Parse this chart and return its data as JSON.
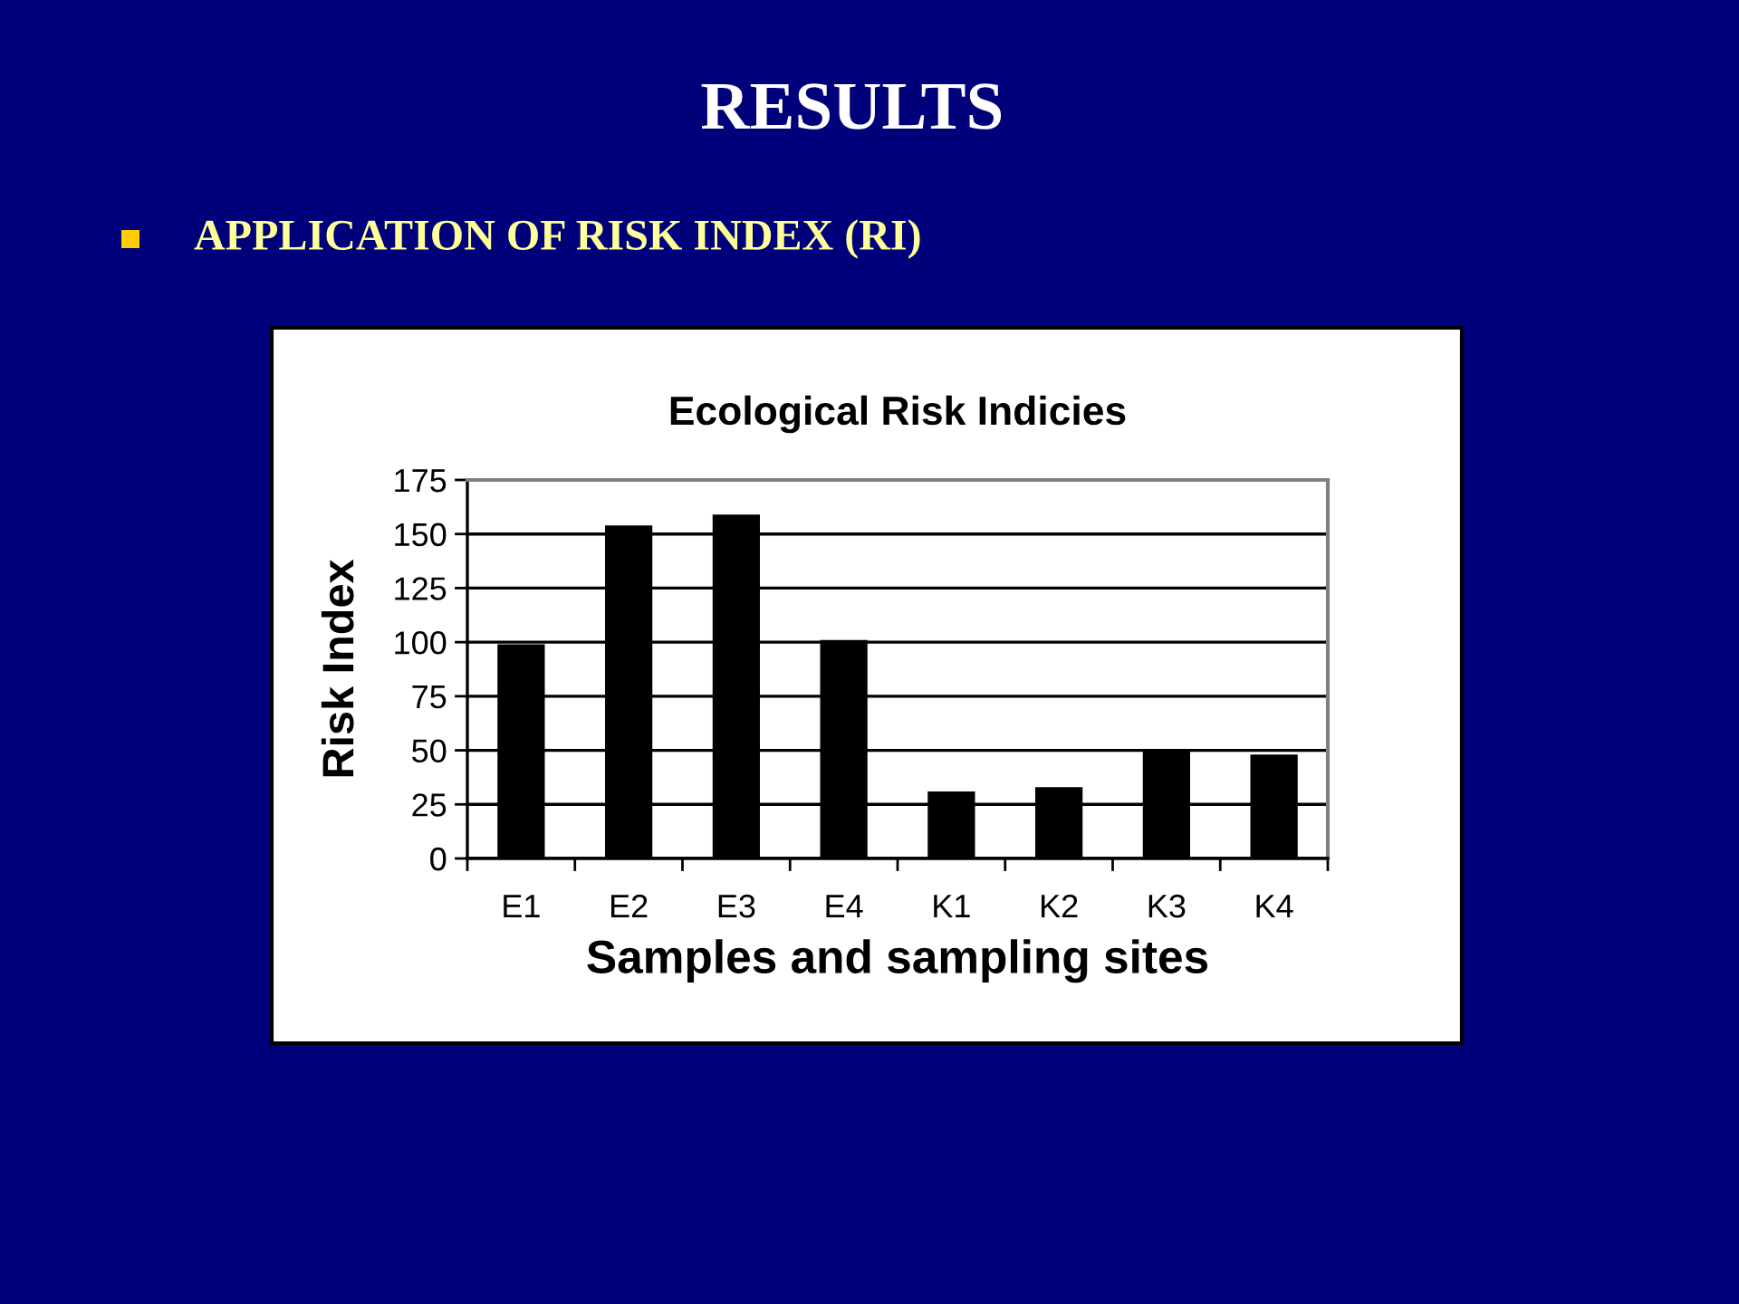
{
  "chart_data": {
    "type": "bar",
    "title": "Ecological Risk Indicies",
    "xlabel": "Samples and sampling sites",
    "ylabel": "Risk Index",
    "categories": [
      "E1",
      "E2",
      "E3",
      "E4",
      "K1",
      "K2",
      "K3",
      "K4"
    ],
    "values": [
      99,
      154,
      159,
      101,
      31,
      33,
      50,
      48
    ],
    "color": "#000000",
    "ylim": [
      0,
      175
    ],
    "yticks": [
      0,
      25,
      50,
      75,
      100,
      125,
      150,
      175
    ],
    "grid": "y",
    "annotations": [
      "RESULTS",
      "APPLICATION OF RISK INDEX (RI)"
    ]
  }
}
